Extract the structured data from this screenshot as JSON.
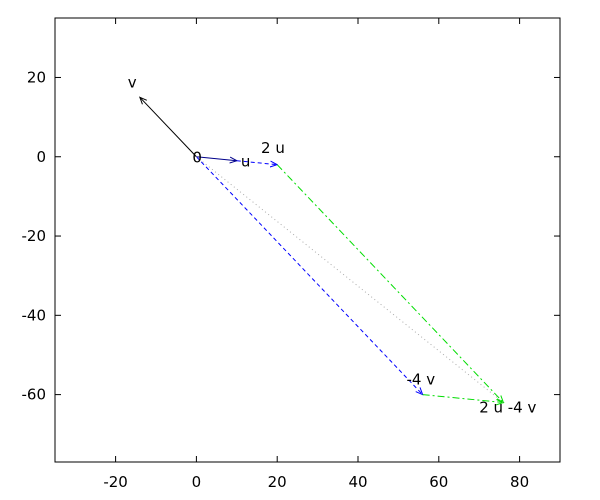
{
  "chart_data": {
    "type": "line",
    "xlim": [
      -35,
      90
    ],
    "ylim": [
      -77,
      35
    ],
    "x_ticks": [
      -20,
      0,
      20,
      40,
      60,
      80
    ],
    "y_ticks": [
      20,
      0,
      -20,
      -40,
      -60
    ],
    "grid": false,
    "segments": [
      {
        "id": "v",
        "from": [
          0,
          0
        ],
        "to": [
          -14,
          15
        ],
        "color": "#000000",
        "style": "solid",
        "arrow": true
      },
      {
        "id": "u",
        "from": [
          0,
          0
        ],
        "to": [
          10,
          -1
        ],
        "color": "#00008b",
        "style": "solid",
        "arrow": true
      },
      {
        "id": "u-to-2u",
        "from": [
          10,
          -1
        ],
        "to": [
          20,
          -2
        ],
        "color": "#0000ff",
        "style": "dashed",
        "arrow": true
      },
      {
        "id": "neg4v",
        "from": [
          0,
          0
        ],
        "to": [
          56,
          -60
        ],
        "color": "#0000ff",
        "style": "dashed",
        "arrow": true
      },
      {
        "id": "2u-to-sum",
        "from": [
          20,
          -2
        ],
        "to": [
          76,
          -62
        ],
        "color": "#00dd00",
        "style": "dashdot",
        "arrow": true
      },
      {
        "id": "neg4v-to-sum",
        "from": [
          56,
          -60
        ],
        "to": [
          76,
          -62
        ],
        "color": "#00dd00",
        "style": "dashdot",
        "arrow": true
      },
      {
        "id": "diagonal",
        "from": [
          0,
          0
        ],
        "to": [
          76,
          -62
        ],
        "color": "#aaaaaa",
        "style": "dotted",
        "arrow": false
      }
    ],
    "labels": [
      {
        "text": "v",
        "x": -17,
        "y": 17.5
      },
      {
        "text": "0",
        "x": -1,
        "y": -1.5
      },
      {
        "text": "u",
        "x": 11,
        "y": -2.5
      },
      {
        "text": "2 u",
        "x": 16,
        "y": 1
      },
      {
        "text": "-4 v",
        "x": 52,
        "y": -57.5
      },
      {
        "text": "2 u -4 v",
        "x": 70,
        "y": -64.5
      }
    ]
  }
}
